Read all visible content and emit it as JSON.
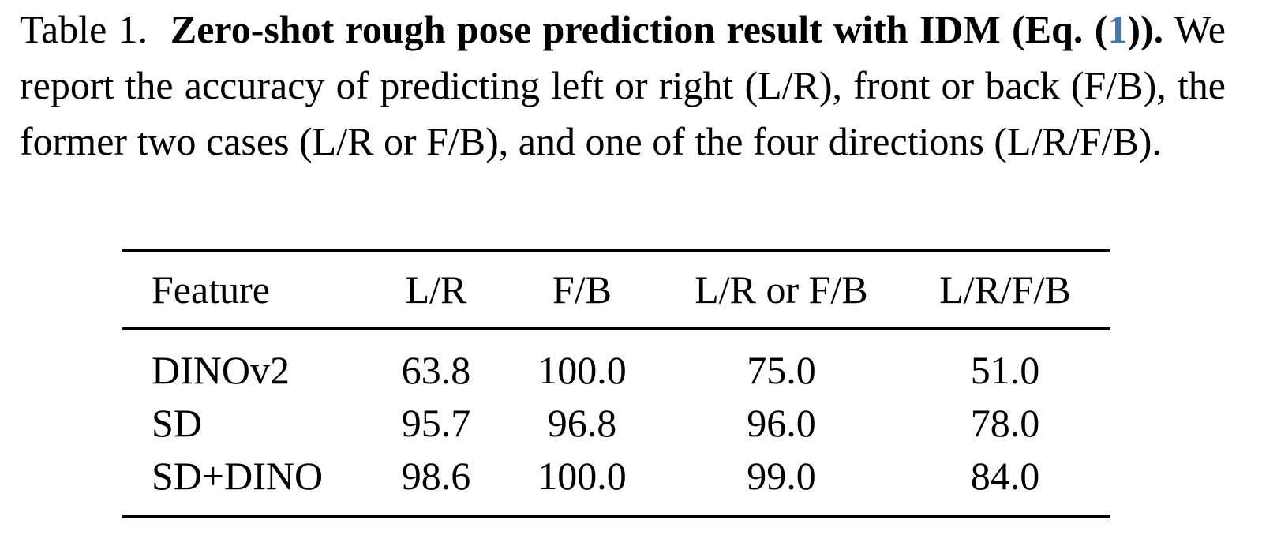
{
  "caption": {
    "label": "Table 1.",
    "title": [
      "Zero-shot rough pose prediction result with IDM (Eq. (",
      "1",
      "))."
    ],
    "text": "We report the accuracy of predicting left or right (L/R), front or back (F/B), the former two cases (L/R or F/B), and one of the four directions (L/R/F/B)."
  },
  "table": {
    "header": [
      "Feature",
      "L/R",
      "F/B",
      "L/R or F/B",
      "L/R/F/B"
    ],
    "rows": [
      [
        "DINOv2",
        "63.8",
        "100.0",
        "75.0",
        "51.0"
      ],
      [
        "SD",
        "95.7",
        "96.8",
        "96.0",
        "78.0"
      ],
      [
        "SD+DINO",
        "98.6",
        "100.0",
        "99.0",
        "84.0"
      ]
    ]
  }
}
